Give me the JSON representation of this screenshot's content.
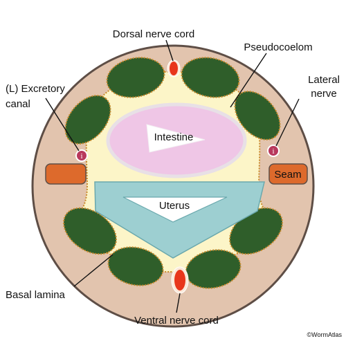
{
  "labels": {
    "dorsal_nerve_cord": "Dorsal nerve cord",
    "pseudocoelom": "Pseudocoelom",
    "excretory_canal_line1": "(L) Excretory",
    "excretory_canal_line2": "canal",
    "lateral_nerve_line1": "Lateral",
    "lateral_nerve_line2": "nerve",
    "intestine": "Intestine",
    "seam": "Seam",
    "uterus": "Uterus",
    "basal_lamina": "Basal lamina",
    "ventral_nerve_cord": "Ventral nerve cord",
    "credit": "©WormAtlas"
  },
  "excretory_marker_left": "i",
  "excretory_marker_right": "i",
  "colors": {
    "hypodermis": "#e2c4ae",
    "pseudocoelom": "#fcf5c8",
    "muscle": "#2f5e2a",
    "intestine": "#efc6e6",
    "uterus": "#9dcfd1",
    "seam": "#dd6a2c",
    "nerve_cord": "#e8361c",
    "excretory": "#b8385c",
    "basal_lamina": "#c98a2a",
    "outline": "#5e4e46"
  }
}
